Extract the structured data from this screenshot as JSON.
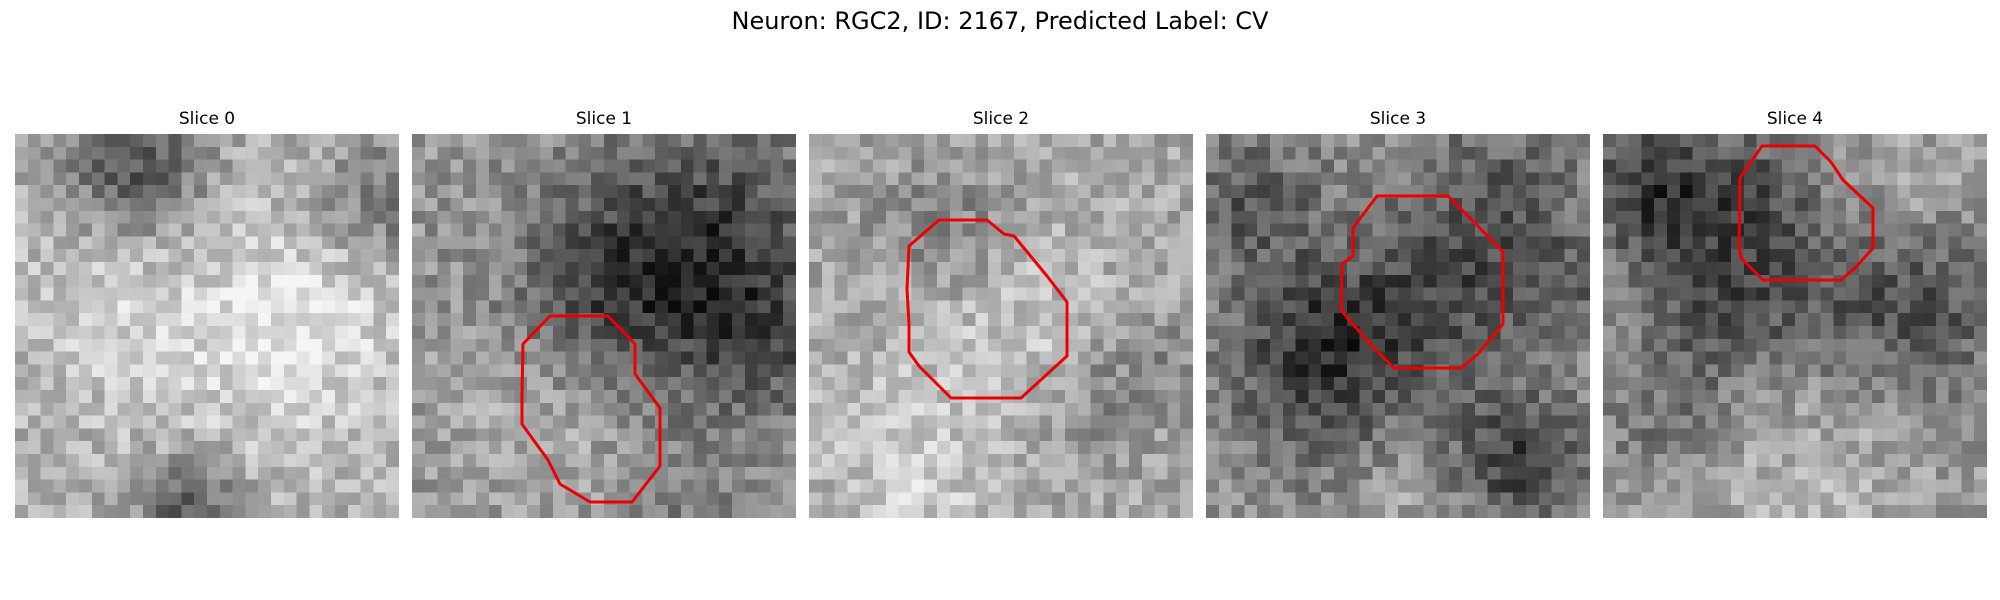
{
  "figure": {
    "title": "Neuron: RGC2, ID: 2167, Predicted Label: CV"
  },
  "panels": [
    {
      "label": "Slice 0",
      "has_outline": false
    },
    {
      "label": "Slice 1",
      "has_outline": true
    },
    {
      "label": "Slice 2",
      "has_outline": true
    },
    {
      "label": "Slice 3",
      "has_outline": true
    },
    {
      "label": "Slice 4",
      "has_outline": true
    }
  ],
  "colors": {
    "outline": "#ee0000",
    "background": "#ffffff"
  }
}
